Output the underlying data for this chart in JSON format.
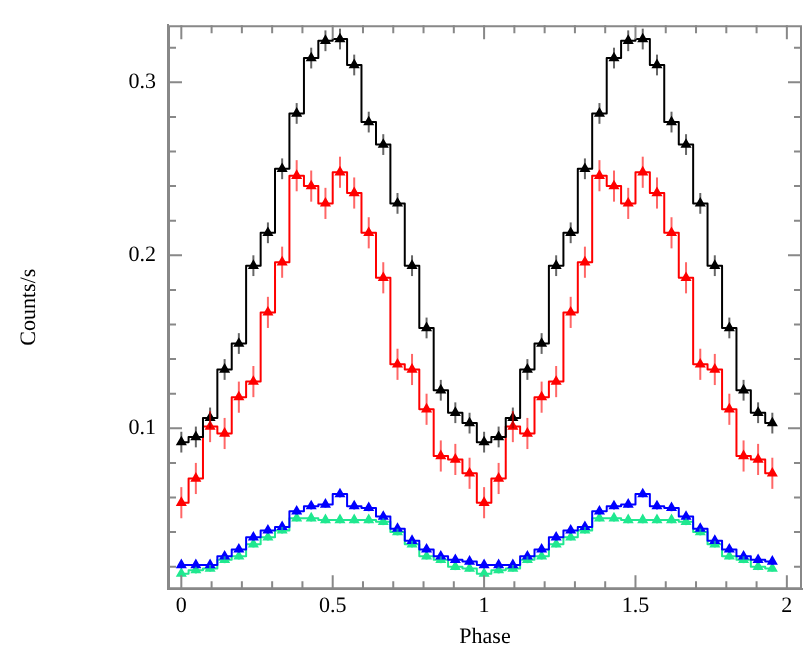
{
  "chart_data": {
    "type": "step",
    "xlabel": "Phase",
    "ylabel": "Counts/s",
    "x": [
      0,
      0.048,
      0.095,
      0.143,
      0.19,
      0.238,
      0.286,
      0.333,
      0.381,
      0.429,
      0.476,
      0.524,
      0.571,
      0.619,
      0.667,
      0.714,
      0.762,
      0.81,
      0.857,
      0.905,
      0.952,
      1,
      1.048,
      1.095,
      1.143,
      1.19,
      1.238,
      1.286,
      1.333,
      1.381,
      1.429,
      1.476,
      1.524,
      1.571,
      1.619,
      1.667,
      1.714,
      1.762,
      1.81,
      1.857,
      1.905,
      1.952
    ],
    "series": [
      {
        "color": "#000000",
        "values": [
          0.092,
          0.095,
          0.106,
          0.134,
          0.149,
          0.194,
          0.213,
          0.25,
          0.282,
          0.314,
          0.324,
          0.325,
          0.31,
          0.277,
          0.264,
          0.23,
          0.194,
          0.158,
          0.122,
          0.109,
          0.103,
          0.092,
          0.095,
          0.106,
          0.134,
          0.149,
          0.194,
          0.213,
          0.25,
          0.282,
          0.314,
          0.324,
          0.325,
          0.31,
          0.277,
          0.264,
          0.23,
          0.194,
          0.158,
          0.122,
          0.109,
          0.103
        ],
        "errors": [
          0.006,
          0.006,
          0.006,
          0.006,
          0.006,
          0.006,
          0.006,
          0.006,
          0.006,
          0.006,
          0.006,
          0.006,
          0.006,
          0.006,
          0.006,
          0.006,
          0.006,
          0.006,
          0.006,
          0.006,
          0.006,
          0.006,
          0.006,
          0.006,
          0.006,
          0.006,
          0.006,
          0.006,
          0.006,
          0.006,
          0.006,
          0.006,
          0.006,
          0.006,
          0.006,
          0.006,
          0.006,
          0.006,
          0.006,
          0.006,
          0.006,
          0.006
        ]
      },
      {
        "color": "#ff0000",
        "values": [
          0.057,
          0.071,
          0.101,
          0.097,
          0.118,
          0.127,
          0.167,
          0.196,
          0.246,
          0.24,
          0.23,
          0.248,
          0.236,
          0.213,
          0.187,
          0.137,
          0.134,
          0.111,
          0.084,
          0.082,
          0.074,
          0.057,
          0.071,
          0.101,
          0.097,
          0.118,
          0.127,
          0.167,
          0.196,
          0.246,
          0.24,
          0.23,
          0.248,
          0.236,
          0.213,
          0.187,
          0.137,
          0.134,
          0.111,
          0.084,
          0.082,
          0.074
        ],
        "errors": [
          0.009,
          0.009,
          0.009,
          0.009,
          0.009,
          0.009,
          0.009,
          0.009,
          0.009,
          0.009,
          0.009,
          0.009,
          0.009,
          0.009,
          0.009,
          0.009,
          0.009,
          0.009,
          0.009,
          0.009,
          0.009,
          0.009,
          0.009,
          0.009,
          0.009,
          0.009,
          0.009,
          0.009,
          0.009,
          0.009,
          0.009,
          0.009,
          0.009,
          0.009,
          0.009,
          0.009,
          0.009,
          0.009,
          0.009,
          0.009,
          0.009,
          0.009
        ]
      },
      {
        "color": "#0000ff",
        "values": [
          0.021,
          0.021,
          0.021,
          0.026,
          0.03,
          0.037,
          0.041,
          0.043,
          0.052,
          0.055,
          0.056,
          0.062,
          0.055,
          0.054,
          0.049,
          0.042,
          0.035,
          0.03,
          0.026,
          0.024,
          0.023,
          0.021,
          0.021,
          0.021,
          0.026,
          0.03,
          0.037,
          0.041,
          0.043,
          0.052,
          0.055,
          0.056,
          0.062,
          0.055,
          0.054,
          0.049,
          0.042,
          0.035,
          0.03,
          0.026,
          0.024,
          0.023
        ],
        "errors": [
          0.002,
          0.002,
          0.002,
          0.002,
          0.002,
          0.002,
          0.002,
          0.002,
          0.002,
          0.002,
          0.002,
          0.002,
          0.002,
          0.002,
          0.002,
          0.002,
          0.002,
          0.002,
          0.002,
          0.002,
          0.002,
          0.002,
          0.002,
          0.002,
          0.002,
          0.002,
          0.002,
          0.002,
          0.002,
          0.002,
          0.002,
          0.002,
          0.002,
          0.002,
          0.002,
          0.002,
          0.002,
          0.002,
          0.002,
          0.002,
          0.002,
          0.002
        ]
      },
      {
        "color": "#20e890",
        "values": [
          0.016,
          0.018,
          0.019,
          0.024,
          0.026,
          0.033,
          0.037,
          0.041,
          0.048,
          0.048,
          0.047,
          0.047,
          0.047,
          0.047,
          0.046,
          0.04,
          0.033,
          0.026,
          0.024,
          0.02,
          0.019,
          0.016,
          0.018,
          0.019,
          0.024,
          0.026,
          0.033,
          0.037,
          0.041,
          0.048,
          0.048,
          0.047,
          0.047,
          0.047,
          0.047,
          0.046,
          0.04,
          0.033,
          0.026,
          0.024,
          0.02,
          0.019
        ],
        "errors": [
          0.002,
          0.002,
          0.002,
          0.002,
          0.002,
          0.002,
          0.002,
          0.002,
          0.002,
          0.002,
          0.002,
          0.002,
          0.002,
          0.002,
          0.002,
          0.002,
          0.002,
          0.002,
          0.002,
          0.002,
          0.002,
          0.002,
          0.002,
          0.002,
          0.002,
          0.002,
          0.002,
          0.002,
          0.002,
          0.002,
          0.002,
          0.002,
          0.002,
          0.002,
          0.002,
          0.002,
          0.002,
          0.002,
          0.002,
          0.002,
          0.002,
          0.002
        ]
      }
    ],
    "xlim": [
      -0.044,
      2.05
    ],
    "ylim": [
      0.007,
      0.333
    ],
    "xticks": [
      0,
      {
        "value": 0.1,
        "label": null
      },
      {
        "value": 0.2,
        "label": null
      },
      {
        "value": 0.3,
        "label": null
      },
      {
        "value": 0.4,
        "label": null
      },
      0.5,
      {
        "value": 0.6,
        "label": null
      },
      {
        "value": 0.7,
        "label": null
      },
      {
        "value": 0.8,
        "label": null
      },
      {
        "value": 0.9,
        "label": null
      },
      1,
      {
        "value": 1.1,
        "label": null
      },
      {
        "value": 1.2,
        "label": null
      },
      {
        "value": 1.3,
        "label": null
      },
      {
        "value": 1.4,
        "label": null
      },
      1.5,
      {
        "value": 1.6,
        "label": null
      },
      {
        "value": 1.7,
        "label": null
      },
      {
        "value": 1.8,
        "label": null
      },
      {
        "value": 1.9,
        "label": null
      },
      2
    ],
    "yticks": [
      {
        "value": 0.02,
        "label": null
      },
      {
        "value": 0.04,
        "label": null
      },
      {
        "value": 0.06,
        "label": null
      },
      {
        "value": 0.08,
        "label": null
      },
      0.1,
      {
        "value": 0.12,
        "label": null
      },
      {
        "value": 0.14,
        "label": null
      },
      {
        "value": 0.16,
        "label": null
      },
      {
        "value": 0.18,
        "label": null
      },
      0.2,
      {
        "value": 0.22,
        "label": null
      },
      {
        "value": 0.24,
        "label": null
      },
      {
        "value": 0.26,
        "label": null
      },
      {
        "value": 0.28,
        "label": null
      },
      0.3,
      {
        "value": 0.32,
        "label": null
      }
    ],
    "grid": false,
    "legend": false,
    "marker": "triangle",
    "line_style": "solid"
  }
}
